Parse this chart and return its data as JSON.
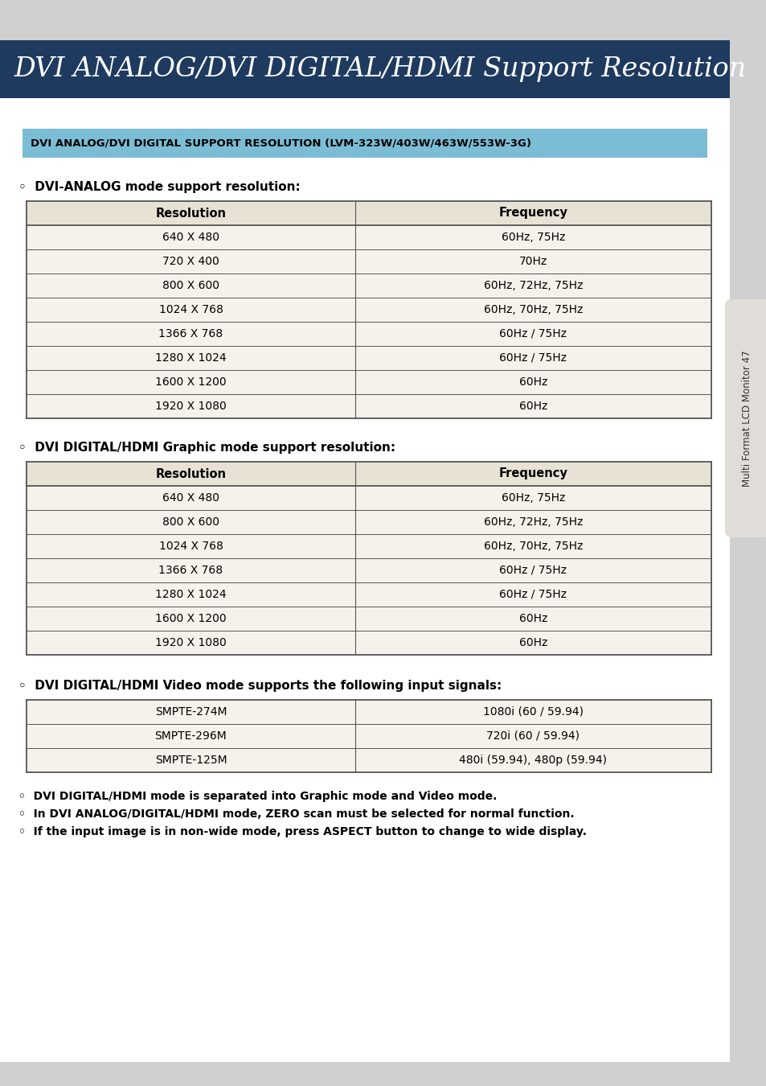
{
  "page_bg": "#d0d0d0",
  "content_bg": "#ffffff",
  "header_bg": "#1e3a5f",
  "header_text": "DVI ANALOG/DVI DIGITAL/HDMI Support Resolution",
  "header_text_color": "#ffffff",
  "subheader_bg": "#7bbdd4",
  "subheader_text": "DVI ANALOG/DVI DIGITAL SUPPORT RESOLUTION (LVM-323W/403W/463W/553W-3G)",
  "subheader_text_color": "#000000",
  "table_header_bg": "#e8e2d5",
  "table_row_bg": "#f5f2eb",
  "table_border": "#555555",
  "section1_title": "◦  DVI-ANALOG mode support resolution:",
  "section2_title": "◦  DVI DIGITAL/HDMI Graphic mode support resolution:",
  "section3_title": "◦  DVI DIGITAL/HDMI Video mode supports the following input signals:",
  "table1_headers": [
    "Resolution",
    "Frequency"
  ],
  "table1_rows": [
    [
      "640 X 480",
      "60Hz, 75Hz"
    ],
    [
      "720 X 400",
      "70Hz"
    ],
    [
      "800 X 600",
      "60Hz, 72Hz, 75Hz"
    ],
    [
      "1024 X 768",
      "60Hz, 70Hz, 75Hz"
    ],
    [
      "1366 X 768",
      "60Hz / 75Hz"
    ],
    [
      "1280 X 1024",
      "60Hz / 75Hz"
    ],
    [
      "1600 X 1200",
      "60Hz"
    ],
    [
      "1920 X 1080",
      "60Hz"
    ]
  ],
  "table2_headers": [
    "Resolution",
    "Frequency"
  ],
  "table2_rows": [
    [
      "640 X 480",
      "60Hz, 75Hz"
    ],
    [
      "800 X 600",
      "60Hz, 72Hz, 75Hz"
    ],
    [
      "1024 X 768",
      "60Hz, 70Hz, 75Hz"
    ],
    [
      "1366 X 768",
      "60Hz / 75Hz"
    ],
    [
      "1280 X 1024",
      "60Hz / 75Hz"
    ],
    [
      "1600 X 1200",
      "60Hz"
    ],
    [
      "1920 X 1080",
      "60Hz"
    ]
  ],
  "table3_rows": [
    [
      "SMPTE-274M",
      "1080i (60 / 59.94)"
    ],
    [
      "SMPTE-296M",
      "720i (60 / 59.94)"
    ],
    [
      "SMPTE-125M",
      "480i (59.94), 480p (59.94)"
    ]
  ],
  "notes": [
    "◦  DVI DIGITAL/HDMI mode is separated into Graphic mode and Video mode.",
    "◦  In DVI ANALOG/DIGITAL/HDMI mode, ZERO scan must be selected for normal function.",
    "◦  If the input image is in non-wide mode, press ASPECT button to change to wide display."
  ],
  "sidebar_text": "Multi Format LCD Monitor 47",
  "sidebar_bg": "#e0ddd8"
}
